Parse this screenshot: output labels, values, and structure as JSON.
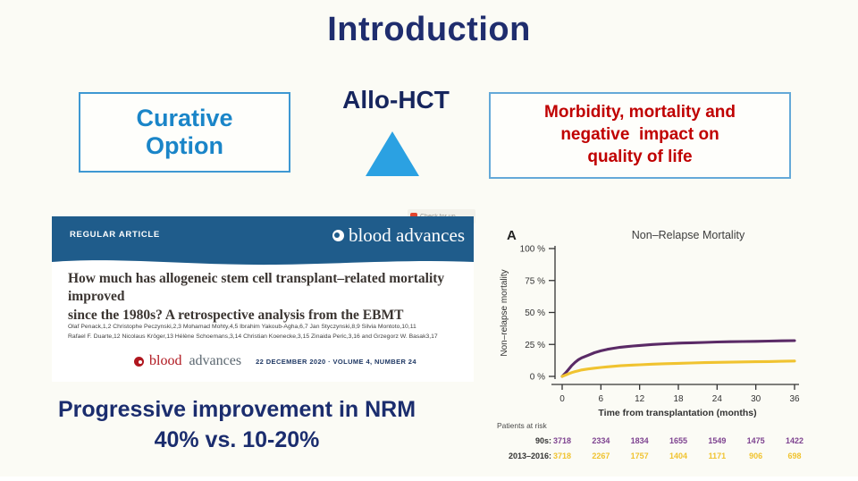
{
  "title": "Introduction",
  "concept": {
    "curative_line1": "Curative",
    "curative_line2": "Option",
    "allo_hct": "Allo-HCT",
    "triangle_color": "#2ba1e2",
    "morbidity_lines": [
      "Morbidity, mortality and",
      "negative  impact on",
      "quality of life"
    ]
  },
  "article": {
    "badge_label": "Check for up",
    "banner_label": "REGULAR ARTICLE",
    "banner_journal": "blood advances",
    "title_line1": "How much has allogeneic stem cell transplant–related mortality improved",
    "title_line2": "since the 1980s? A retrospective analysis from the EBMT",
    "authors_line1": "Olaf Penack,1,2 Christophe Peczynski,2,3 Mohamad Mohty,4,5 Ibrahim Yakoub-Agha,6,7 Jan Styczynski,8,9 Silvia Montoto,10,11",
    "authors_line2": "Rafael F. Duarte,12 Nicolaus Kröger,13 Hélène Schoemans,3,14 Christian Koenecke,3,15 Zinaida Peric,3,16 and Grzegorz W. Basak3,17",
    "citation_blood": "blood",
    "citation_advances": "advances",
    "citation_issue": "22 DECEMBER 2020 · VOLUME 4, NUMBER 24"
  },
  "statement": {
    "line1": "Progressive improvement in NRM",
    "line2": "40% vs. 10-20%"
  },
  "chart_data": {
    "type": "line",
    "panel_label": "A",
    "title": "Non–Relapse Mortality",
    "xlabel": "Time from transplantation (months)",
    "ylabel": "Non–relapse mortality",
    "xlim": [
      0,
      36
    ],
    "ylim": [
      0,
      100
    ],
    "x_ticks": [
      0,
      6,
      12,
      18,
      24,
      30,
      36
    ],
    "y_ticks": [
      0,
      25,
      50,
      75,
      100
    ],
    "y_tick_suffix": " %",
    "grid": false,
    "series": [
      {
        "name": "90s",
        "color": "#5a2a66",
        "x": [
          0,
          0.5,
          1,
          1.5,
          2,
          2.5,
          3,
          4,
          5,
          6,
          7,
          8,
          9,
          10,
          11,
          12,
          14,
          16,
          18,
          20,
          22,
          24,
          26,
          28,
          30,
          32,
          34,
          36
        ],
        "y": [
          0,
          2.5,
          5.5,
          8.5,
          11,
          13,
          14.5,
          16.5,
          18.5,
          20,
          21.2,
          22,
          22.8,
          23.3,
          23.8,
          24.2,
          25,
          25.5,
          26,
          26.3,
          26.6,
          26.9,
          27.1,
          27.3,
          27.4,
          27.6,
          27.8,
          28
        ]
      },
      {
        "name": "2013-2016",
        "color": "#f0c330",
        "x": [
          0,
          0.5,
          1,
          1.5,
          2,
          2.5,
          3,
          4,
          5,
          6,
          7,
          8,
          9,
          10,
          11,
          12,
          14,
          16,
          18,
          20,
          22,
          24,
          26,
          28,
          30,
          32,
          34,
          36
        ],
        "y": [
          0,
          1,
          2,
          3,
          3.8,
          4.4,
          5,
          5.8,
          6.4,
          7,
          7.5,
          7.9,
          8.3,
          8.6,
          8.9,
          9.1,
          9.6,
          9.9,
          10.2,
          10.5,
          10.8,
          11,
          11.1,
          11.3,
          11.5,
          11.6,
          11.8,
          12
        ]
      }
    ],
    "risk_table": {
      "header": "Patients at risk",
      "rows": [
        {
          "label": "90s:",
          "color": "#7e4390",
          "values": [
            "3718",
            "2334",
            "1834",
            "1655",
            "1549",
            "1475",
            "1422"
          ]
        },
        {
          "label": "2013–2016:",
          "color": "#f0c330",
          "values": [
            "3718",
            "2267",
            "1757",
            "1404",
            "1171",
            "906",
            "698"
          ]
        }
      ]
    }
  }
}
